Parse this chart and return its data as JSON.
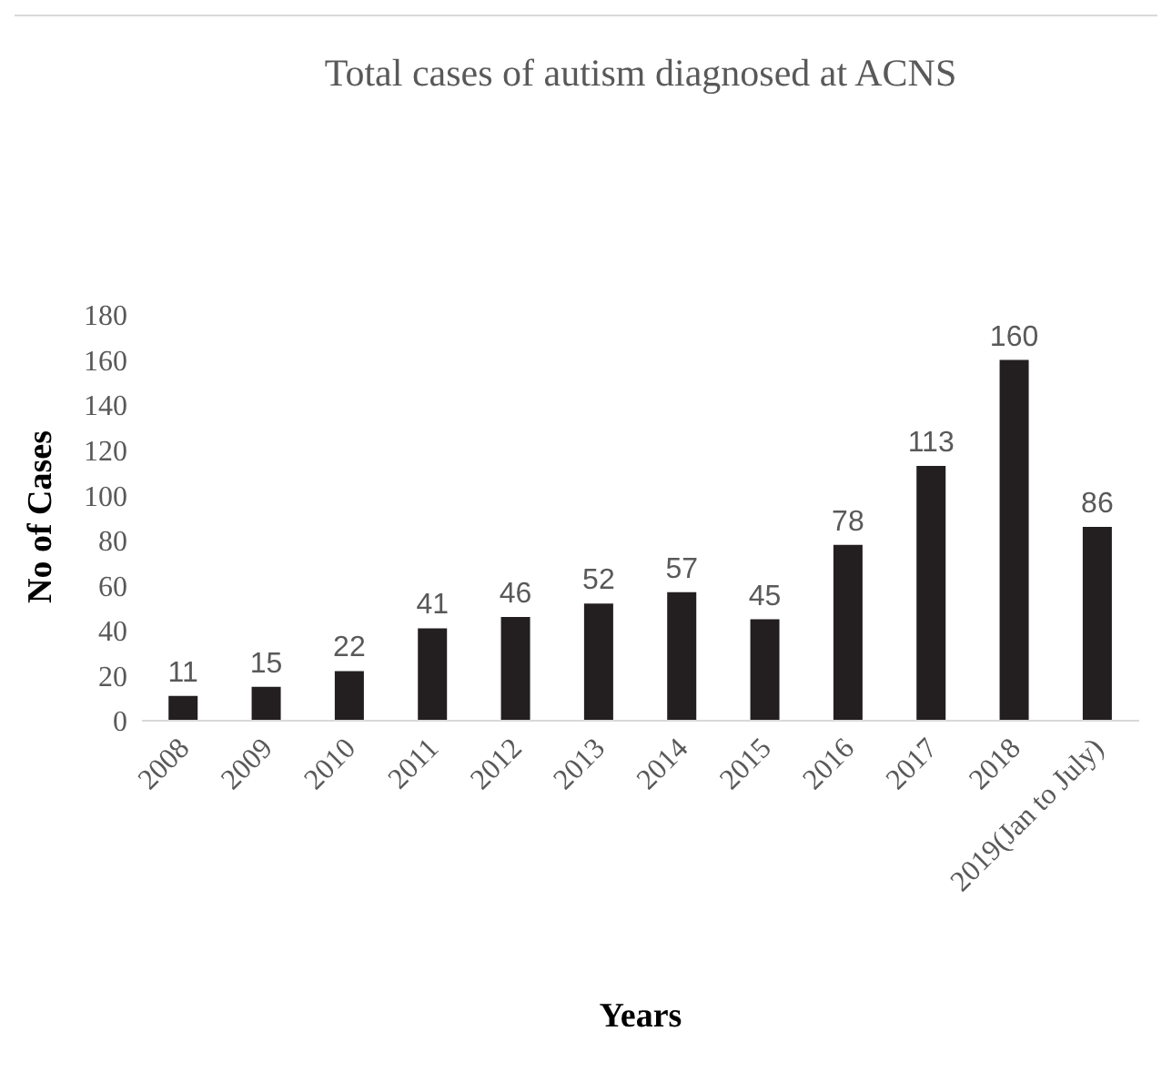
{
  "chart_data": {
    "type": "bar",
    "title": "Total cases of autism diagnosed at ACNS",
    "xlabel": "Years",
    "ylabel": "No of Cases",
    "categories": [
      "2008",
      "2009",
      "2010",
      "2011",
      "2012",
      "2013",
      "2014",
      "2015",
      "2016",
      "2017",
      "2018",
      "2019(Jan to July)"
    ],
    "values": [
      11,
      15,
      22,
      41,
      46,
      52,
      57,
      45,
      78,
      113,
      160,
      86
    ],
    "color": "#231f20",
    "ylim": [
      0,
      180
    ],
    "yticks": [
      0,
      20,
      40,
      60,
      80,
      100,
      120,
      140,
      160,
      180
    ],
    "data_labels": true
  }
}
